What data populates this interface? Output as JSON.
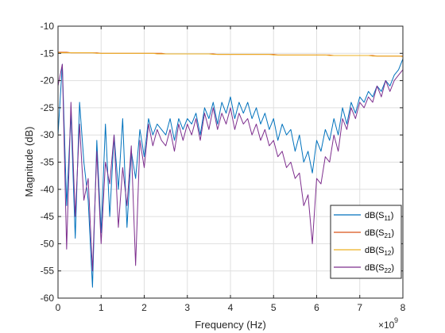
{
  "chart_data": {
    "type": "line",
    "title": "",
    "xlabel": "Frequency (Hz)",
    "ylabel": "Magnitude (dB)",
    "x_exponent_label": "×10",
    "x_exponent_power": "9",
    "xlim": [
      0,
      8
    ],
    "ylim": [
      -60,
      -10
    ],
    "x_ticks": [
      "0",
      "1",
      "2",
      "3",
      "4",
      "5",
      "6",
      "7",
      "8"
    ],
    "y_ticks": [
      "-10",
      "-15",
      "-20",
      "-25",
      "-30",
      "-35",
      "-40",
      "-45",
      "-50",
      "-55",
      "-60"
    ],
    "grid": true,
    "legend_position": "bottom-right",
    "x": [
      0,
      0.1,
      0.2,
      0.3,
      0.4,
      0.5,
      0.6,
      0.7,
      0.8,
      0.9,
      1.0,
      1.1,
      1.2,
      1.3,
      1.4,
      1.5,
      1.6,
      1.7,
      1.8,
      1.9,
      2.0,
      2.1,
      2.2,
      2.3,
      2.4,
      2.5,
      2.6,
      2.7,
      2.8,
      2.9,
      3.0,
      3.1,
      3.2,
      3.3,
      3.4,
      3.5,
      3.6,
      3.7,
      3.8,
      3.9,
      4.0,
      4.1,
      4.2,
      4.3,
      4.4,
      4.5,
      4.6,
      4.7,
      4.8,
      4.9,
      5.0,
      5.1,
      5.2,
      5.3,
      5.4,
      5.5,
      5.6,
      5.7,
      5.8,
      5.9,
      6.0,
      6.1,
      6.2,
      6.3,
      6.4,
      6.5,
      6.6,
      6.7,
      6.8,
      6.9,
      7.0,
      7.1,
      7.2,
      7.3,
      7.4,
      7.5,
      7.6,
      7.7,
      7.8,
      7.9,
      8.0
    ],
    "series": [
      {
        "name": "dB(S11)",
        "label_main": "dB(S",
        "label_sub": "11",
        "color": "#0072BD",
        "values": [
          -30,
          -17,
          -43,
          -26,
          -49,
          -24,
          -35,
          -42,
          -58,
          -31,
          -48,
          -28,
          -45,
          -30,
          -40,
          -27,
          -47,
          -33,
          -38,
          -29,
          -34,
          -27,
          -30,
          -28,
          -29,
          -30,
          -27,
          -31,
          -27,
          -29,
          -27,
          -28,
          -26,
          -30,
          -25,
          -27,
          -24,
          -28,
          -24,
          -26,
          -23,
          -27,
          -24,
          -26,
          -24,
          -27,
          -25,
          -28,
          -26,
          -29,
          -27,
          -31,
          -28,
          -30,
          -29,
          -33,
          -30,
          -35,
          -33,
          -37,
          -31,
          -33,
          -29,
          -31,
          -27,
          -30,
          -25,
          -28,
          -24,
          -26,
          -23,
          -24,
          -22,
          -23,
          -21,
          -22,
          -20,
          -21,
          -19,
          -18,
          -16
        ]
      },
      {
        "name": "dB(S21)",
        "label_main": "dB(S",
        "label_sub": "21",
        "color": "#D95319",
        "values": [
          -14.8,
          -14.8,
          -14.8,
          -14.9,
          -14.9,
          -14.9,
          -14.9,
          -14.9,
          -14.9,
          -14.9,
          -15.0,
          -15.0,
          -15.0,
          -15.0,
          -15.0,
          -15.0,
          -15.0,
          -15.0,
          -15.0,
          -15.0,
          -15.0,
          -15.0,
          -15.0,
          -15.0,
          -15.0,
          -15.1,
          -15.1,
          -15.1,
          -15.1,
          -15.1,
          -15.1,
          -15.1,
          -15.1,
          -15.1,
          -15.1,
          -15.1,
          -15.1,
          -15.2,
          -15.2,
          -15.2,
          -15.2,
          -15.2,
          -15.2,
          -15.2,
          -15.2,
          -15.2,
          -15.2,
          -15.2,
          -15.2,
          -15.2,
          -15.2,
          -15.3,
          -15.3,
          -15.3,
          -15.3,
          -15.3,
          -15.3,
          -15.3,
          -15.3,
          -15.3,
          -15.3,
          -15.3,
          -15.3,
          -15.3,
          -15.4,
          -15.4,
          -15.4,
          -15.4,
          -15.4,
          -15.4,
          -15.4,
          -15.4,
          -15.4,
          -15.4,
          -15.5,
          -15.5,
          -15.5,
          -15.5,
          -15.5,
          -15.5,
          -15.5
        ]
      },
      {
        "name": "dB(S12)",
        "label_main": "dB(S",
        "label_sub": "12",
        "color": "#EDB120",
        "values": [
          -14.9,
          -14.9,
          -14.9,
          -14.9,
          -14.9,
          -14.9,
          -14.9,
          -14.9,
          -14.9,
          -15.0,
          -15.0,
          -15.0,
          -15.0,
          -15.0,
          -15.0,
          -15.0,
          -15.0,
          -15.0,
          -15.0,
          -15.0,
          -15.0,
          -15.0,
          -15.0,
          -15.1,
          -15.1,
          -15.1,
          -15.1,
          -15.1,
          -15.1,
          -15.1,
          -15.1,
          -15.1,
          -15.1,
          -15.1,
          -15.1,
          -15.1,
          -15.2,
          -15.2,
          -15.2,
          -15.2,
          -15.2,
          -15.2,
          -15.2,
          -15.2,
          -15.2,
          -15.2,
          -15.2,
          -15.2,
          -15.2,
          -15.2,
          -15.3,
          -15.3,
          -15.3,
          -15.3,
          -15.3,
          -15.3,
          -15.3,
          -15.3,
          -15.3,
          -15.3,
          -15.3,
          -15.3,
          -15.3,
          -15.4,
          -15.4,
          -15.4,
          -15.4,
          -15.4,
          -15.4,
          -15.4,
          -15.4,
          -15.4,
          -15.4,
          -15.5,
          -15.5,
          -15.5,
          -15.5,
          -15.5,
          -15.5,
          -15.5,
          -15.6
        ]
      },
      {
        "name": "dB(S22)",
        "label_main": "dB(S",
        "label_sub": "22",
        "color": "#7E2F8E",
        "values": [
          -21,
          -17,
          -51,
          -24,
          -45,
          -28,
          -42,
          -38,
          -55,
          -33,
          -50,
          -35,
          -39,
          -30,
          -47,
          -36,
          -43,
          -32,
          -54,
          -31,
          -36,
          -28,
          -32,
          -29,
          -31,
          -32,
          -29,
          -33,
          -28,
          -31,
          -28,
          -30,
          -27,
          -31,
          -26,
          -29,
          -25,
          -29,
          -26,
          -28,
          -25,
          -29,
          -26,
          -28,
          -27,
          -30,
          -28,
          -31,
          -29,
          -32,
          -31,
          -34,
          -33,
          -36,
          -35,
          -38,
          -37,
          -43,
          -41,
          -50,
          -38,
          -39,
          -34,
          -35,
          -30,
          -33,
          -27,
          -29,
          -25,
          -27,
          -24,
          -25,
          -23,
          -24,
          -21,
          -23,
          -20,
          -22,
          -20,
          -19,
          -18
        ]
      }
    ]
  }
}
